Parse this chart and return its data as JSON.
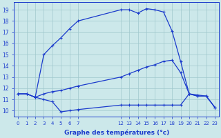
{
  "background_color": "#cce8ea",
  "grid_color": "#a0c8cc",
  "line_color": "#1a3acc",
  "xlabel": "Graphe des températures (°c)",
  "ylim": [
    9.5,
    19.7
  ],
  "xlim": [
    -0.5,
    23.5
  ],
  "yticks": [
    10,
    11,
    12,
    13,
    14,
    15,
    16,
    17,
    18,
    19
  ],
  "xtick_positions": [
    0,
    1,
    2,
    3,
    4,
    5,
    6,
    7,
    12,
    13,
    14,
    15,
    16,
    17,
    18,
    19,
    20,
    21,
    22,
    23
  ],
  "xtick_labels": [
    "0",
    "1",
    "2",
    "3",
    "4",
    "5",
    "6",
    "7",
    "12",
    "13",
    "14",
    "15",
    "16",
    "17",
    "18",
    "19",
    "20",
    "21",
    "22",
    "23"
  ],
  "line1_x": [
    0,
    1,
    2,
    3,
    4,
    5,
    6,
    7,
    12,
    13,
    14,
    15,
    16,
    17,
    18,
    19,
    20,
    21,
    22,
    23
  ],
  "line1_y": [
    11.5,
    11.5,
    11.2,
    15.0,
    15.8,
    16.5,
    17.3,
    18.0,
    19.0,
    19.0,
    18.7,
    19.1,
    19.0,
    18.8,
    17.1,
    14.4,
    11.5,
    11.4,
    11.3,
    10.3
  ],
  "line2_x": [
    0,
    1,
    2,
    3,
    4,
    5,
    6,
    7,
    12,
    13,
    14,
    15,
    16,
    17,
    18,
    19,
    20,
    21,
    22,
    23
  ],
  "line2_y": [
    11.5,
    11.5,
    11.2,
    11.5,
    11.7,
    11.8,
    12.0,
    12.2,
    13.0,
    13.3,
    13.6,
    13.9,
    14.1,
    14.4,
    14.5,
    13.4,
    11.5,
    11.3,
    11.3,
    10.3
  ],
  "line3_x": [
    0,
    1,
    2,
    3,
    4,
    5,
    6,
    7,
    12,
    13,
    14,
    15,
    16,
    17,
    18,
    19,
    20,
    21,
    22,
    23
  ],
  "line3_y": [
    11.5,
    11.5,
    11.2,
    11.0,
    10.8,
    9.9,
    10.0,
    10.1,
    10.5,
    10.5,
    10.5,
    10.5,
    10.5,
    10.5,
    10.5,
    10.5,
    11.5,
    11.3,
    11.3,
    10.3
  ]
}
